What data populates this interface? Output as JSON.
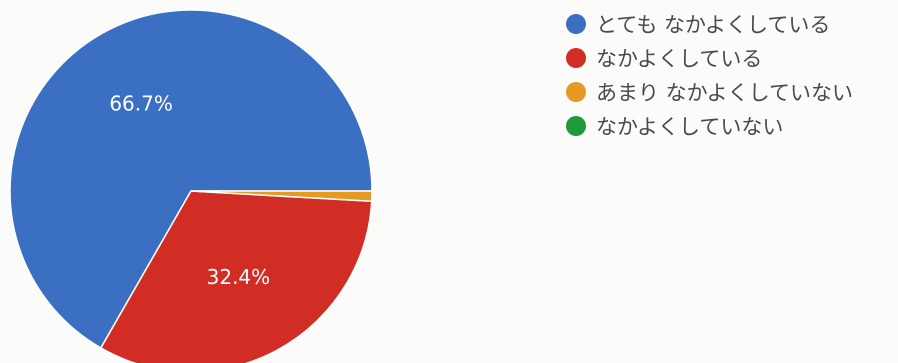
{
  "chart_data": {
    "type": "pie",
    "start_angle_deg": 0,
    "direction": "counterclockwise",
    "slices": [
      {
        "label": "とても なかよくしている",
        "value": 66.7,
        "display": "66.7%",
        "color": "#3a6fc2"
      },
      {
        "label": "なかよくしている",
        "value": 32.4,
        "display": "32.4%",
        "color": "#d12d25"
      },
      {
        "label": "あまり なかよくしていない",
        "value": 0.9,
        "display": "",
        "color": "#e69a23"
      },
      {
        "label": "なかよくしていない",
        "value": 0.0,
        "display": "",
        "color": "#1f9a3a"
      }
    ],
    "legend_position": "right"
  }
}
